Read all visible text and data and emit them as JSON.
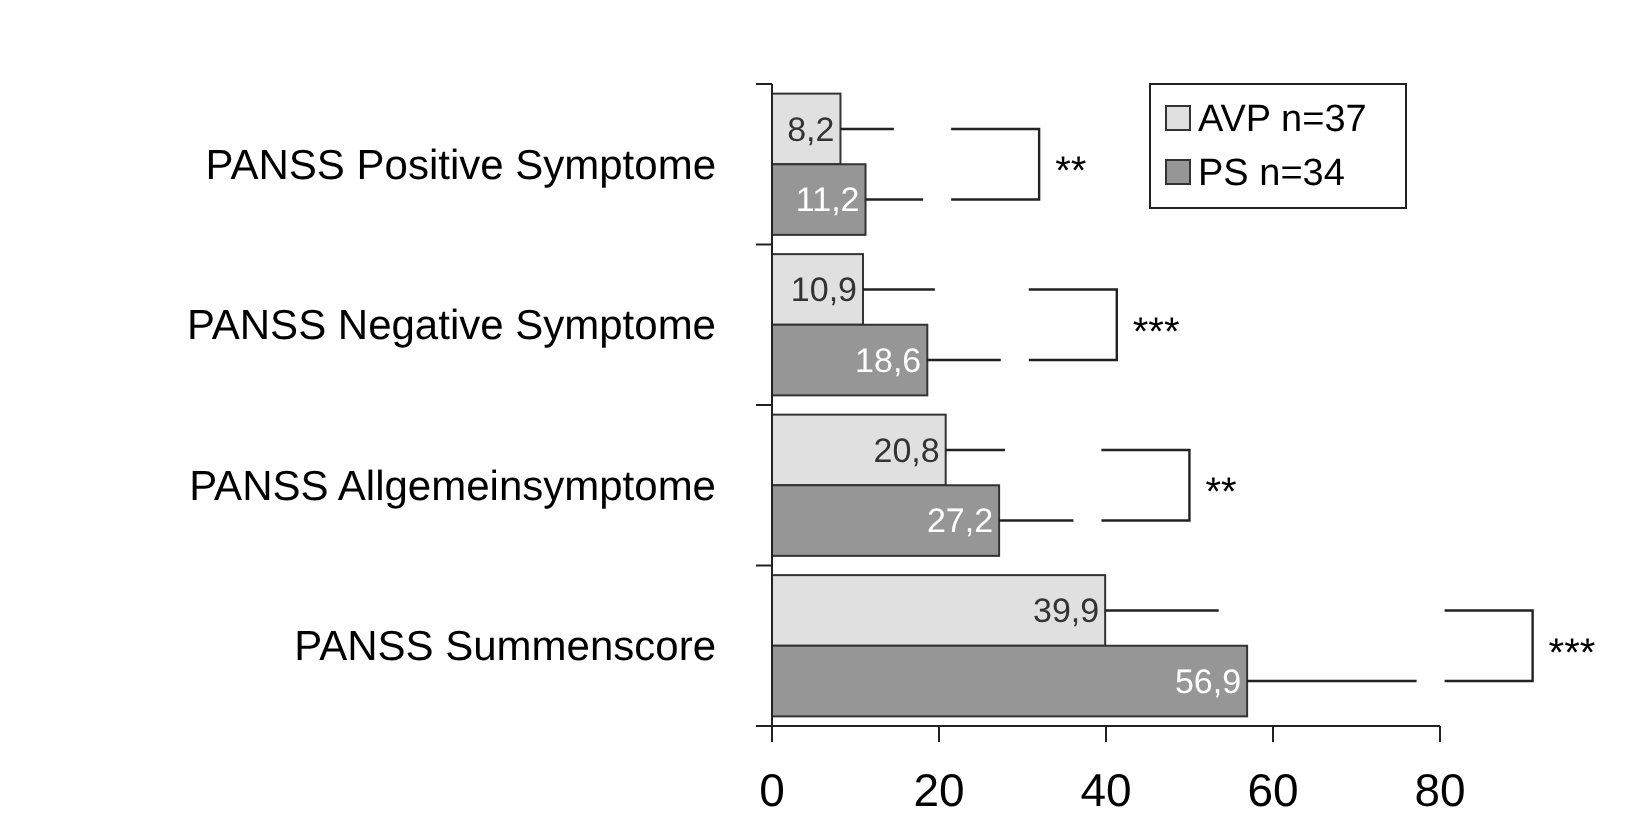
{
  "chart_data": {
    "type": "bar",
    "orientation": "horizontal",
    "categories": [
      "PANSS Positive Symptome",
      "PANSS Negative Symptome",
      "PANSS Allgemeinsymptome",
      "PANSS Summenscore"
    ],
    "series": [
      {
        "name": "AVP n=37",
        "color": "#e0e0e0",
        "values": [
          8.2,
          10.9,
          20.8,
          39.9
        ],
        "value_labels": [
          "8,2",
          "10,9",
          "20,8",
          "39,9"
        ],
        "errors": [
          6.4,
          8.6,
          7.1,
          13.6
        ]
      },
      {
        "name": "PS n=34",
        "color": "#969696",
        "values": [
          11.2,
          18.6,
          27.2,
          56.9
        ],
        "value_labels": [
          "11,2",
          "18,6",
          "27,2",
          "56,9"
        ],
        "errors": [
          6.9,
          8.8,
          8.9,
          20.3
        ]
      }
    ],
    "xlim": [
      0,
      80
    ],
    "xticks": [
      0,
      20,
      40,
      60,
      80
    ],
    "grid": false,
    "legend": "top right",
    "annotations": [
      "**",
      "***",
      "**",
      "***"
    ]
  }
}
